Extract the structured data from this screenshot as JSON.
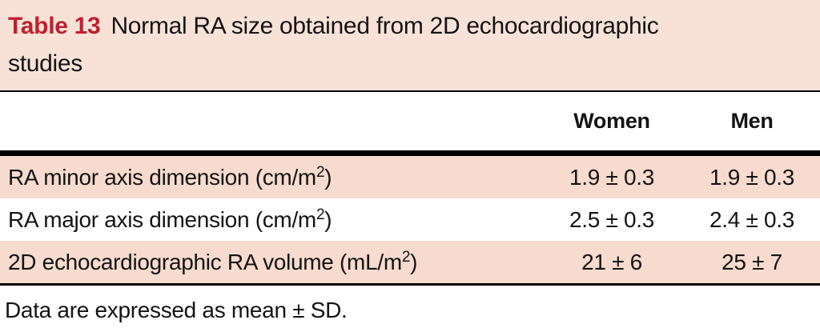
{
  "caption": {
    "number": "Table 13",
    "title": "Normal RA size obtained from 2D echocardiographic studies"
  },
  "table": {
    "columns": [
      "Women",
      "Men"
    ],
    "rows": [
      {
        "label_prefix": "RA minor axis dimension (cm/m",
        "label_sup": "2",
        "label_suffix": ")",
        "women": "1.9 ± 0.3",
        "men": "1.9 ± 0.3"
      },
      {
        "label_prefix": "RA major axis dimension (cm/m",
        "label_sup": "2",
        "label_suffix": ")",
        "women": "2.5 ± 0.3",
        "men": "2.4 ± 0.3"
      },
      {
        "label_prefix": "2D echocardiographic RA volume (mL/m",
        "label_sup": "2",
        "label_suffix": ")",
        "women": "21 ± 6",
        "men": "25 ± 7"
      }
    ]
  },
  "footnote": "Data are expressed as mean ± SD.",
  "colors": {
    "accent_red": "#c01f2e",
    "caption_pink": "#f8e2d8",
    "band_pink": "#f6dbce",
    "rule_black": "#000000"
  },
  "chart_data": {
    "type": "table",
    "title": "Table 13  Normal RA size obtained from 2D echocardiographic studies",
    "columns": [
      "",
      "Women",
      "Men"
    ],
    "rows": [
      [
        "RA minor axis dimension (cm/m2)",
        "1.9 ± 0.3",
        "1.9 ± 0.3"
      ],
      [
        "RA major axis dimension (cm/m2)",
        "2.5 ± 0.3",
        "2.4 ± 0.3"
      ],
      [
        "2D echocardiographic RA volume (mL/m2)",
        "21 ± 6",
        "25 ± 7"
      ]
    ],
    "footnote": "Data are expressed as mean ± SD."
  }
}
